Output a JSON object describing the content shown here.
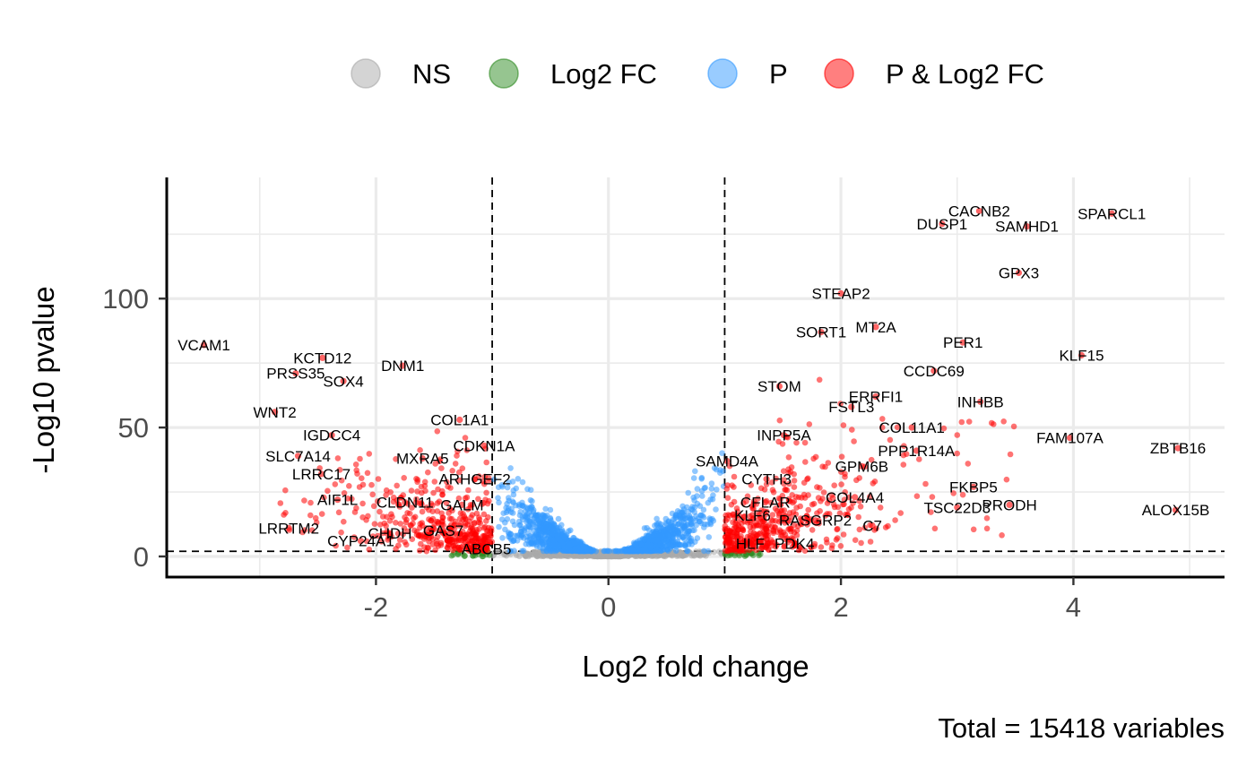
{
  "chart_data": {
    "type": "scatter",
    "subtype": "volcano",
    "xlabel": "Log2 fold change",
    "ylabel": "-Log10 pvalue",
    "caption": "Total = 15418 variables",
    "xlim": [
      -3.8,
      5.3
    ],
    "ylim": [
      -8,
      147
    ],
    "x_ticks": [
      -2,
      0,
      2,
      4
    ],
    "x_tick_labels": [
      "-2",
      "0",
      "2",
      "4"
    ],
    "y_ticks": [
      0,
      50,
      100
    ],
    "y_tick_labels": [
      "0",
      "50",
      "100"
    ],
    "grid": true,
    "legend_position": "top",
    "fc_cutoff": 1,
    "p_cutoff_neglog10": 2,
    "legend": [
      {
        "key": "NS",
        "label": "NS",
        "color": "#a9a9a9"
      },
      {
        "key": "FC",
        "label": "Log2 FC",
        "color": "#2e8b22"
      },
      {
        "key": "P",
        "label": "P",
        "color": "#3399ff"
      },
      {
        "key": "PFC",
        "label": "P & Log2 FC",
        "color": "#ff0000"
      }
    ],
    "labeled_points": [
      {
        "gene": "SPARCL1",
        "x": 4.33,
        "y": 133
      },
      {
        "gene": "CACNB2",
        "x": 3.19,
        "y": 134
      },
      {
        "gene": "DUSP1",
        "x": 2.87,
        "y": 129
      },
      {
        "gene": "SAMHD1",
        "x": 3.6,
        "y": 128
      },
      {
        "gene": "GPX3",
        "x": 3.53,
        "y": 110
      },
      {
        "gene": "STEAP2",
        "x": 2.0,
        "y": 102
      },
      {
        "gene": "MT2A",
        "x": 2.3,
        "y": 89
      },
      {
        "gene": "SORT1",
        "x": 1.83,
        "y": 87
      },
      {
        "gene": "PER1",
        "x": 3.05,
        "y": 83
      },
      {
        "gene": "KLF15",
        "x": 4.07,
        "y": 78
      },
      {
        "gene": "CCDC69",
        "x": 2.8,
        "y": 72
      },
      {
        "gene": "STOM",
        "x": 1.47,
        "y": 66
      },
      {
        "gene": "ERRFI1",
        "x": 2.3,
        "y": 62
      },
      {
        "gene": "INHBB",
        "x": 3.2,
        "y": 60
      },
      {
        "gene": "FSTL3",
        "x": 2.09,
        "y": 58
      },
      {
        "gene": "COL11A1",
        "x": 2.61,
        "y": 50
      },
      {
        "gene": "INPP5A",
        "x": 1.51,
        "y": 47
      },
      {
        "gene": "FAM107A",
        "x": 3.97,
        "y": 46
      },
      {
        "gene": "ZBTB16",
        "x": 4.9,
        "y": 42
      },
      {
        "gene": "PPP1R14A",
        "x": 2.65,
        "y": 41
      },
      {
        "gene": "SAMD4A",
        "x": 1.02,
        "y": 37
      },
      {
        "gene": "GPM6B",
        "x": 2.18,
        "y": 35
      },
      {
        "gene": "CYTH3",
        "x": 1.36,
        "y": 30
      },
      {
        "gene": "FKBP5",
        "x": 3.14,
        "y": 27
      },
      {
        "gene": "CFLAR",
        "x": 1.35,
        "y": 21
      },
      {
        "gene": "COL4A4",
        "x": 2.12,
        "y": 23
      },
      {
        "gene": "TSC22D3",
        "x": 3.0,
        "y": 19
      },
      {
        "gene": "PRODH",
        "x": 3.45,
        "y": 20
      },
      {
        "gene": "ALOX15B",
        "x": 4.88,
        "y": 18
      },
      {
        "gene": "KLF6",
        "x": 1.24,
        "y": 16
      },
      {
        "gene": "RASGRP2",
        "x": 1.78,
        "y": 14
      },
      {
        "gene": "C7",
        "x": 2.27,
        "y": 12
      },
      {
        "gene": "HLF",
        "x": 1.22,
        "y": 5
      },
      {
        "gene": "PDK4",
        "x": 1.6,
        "y": 5
      },
      {
        "gene": "VCAM1",
        "x": -3.48,
        "y": 82
      },
      {
        "gene": "KCTD12",
        "x": -2.46,
        "y": 77
      },
      {
        "gene": "DNM1",
        "x": -1.77,
        "y": 74
      },
      {
        "gene": "PRSS35",
        "x": -2.69,
        "y": 71
      },
      {
        "gene": "SOX4",
        "x": -2.28,
        "y": 68
      },
      {
        "gene": "WNT2",
        "x": -2.87,
        "y": 56
      },
      {
        "gene": "COL1A1",
        "x": -1.28,
        "y": 53
      },
      {
        "gene": "IGDCC4",
        "x": -2.38,
        "y": 47
      },
      {
        "gene": "CDKN1A",
        "x": -1.07,
        "y": 43
      },
      {
        "gene": "SLC7A14",
        "x": -2.67,
        "y": 39
      },
      {
        "gene": "MXRA5",
        "x": -1.6,
        "y": 38
      },
      {
        "gene": "LRRC17",
        "x": -2.47,
        "y": 32
      },
      {
        "gene": "ARHGEF2",
        "x": -1.15,
        "y": 30
      },
      {
        "gene": "AIF1L",
        "x": -2.33,
        "y": 22
      },
      {
        "gene": "CLDN11",
        "x": -1.75,
        "y": 21
      },
      {
        "gene": "GALM",
        "x": -1.26,
        "y": 20
      },
      {
        "gene": "LRRTM2",
        "x": -2.75,
        "y": 11
      },
      {
        "gene": "CHDH",
        "x": -1.88,
        "y": 9
      },
      {
        "gene": "GAS7",
        "x": -1.42,
        "y": 10
      },
      {
        "gene": "CYP24A1",
        "x": -2.13,
        "y": 6
      },
      {
        "gene": "ABCB5",
        "x": -1.05,
        "y": 3
      }
    ]
  }
}
